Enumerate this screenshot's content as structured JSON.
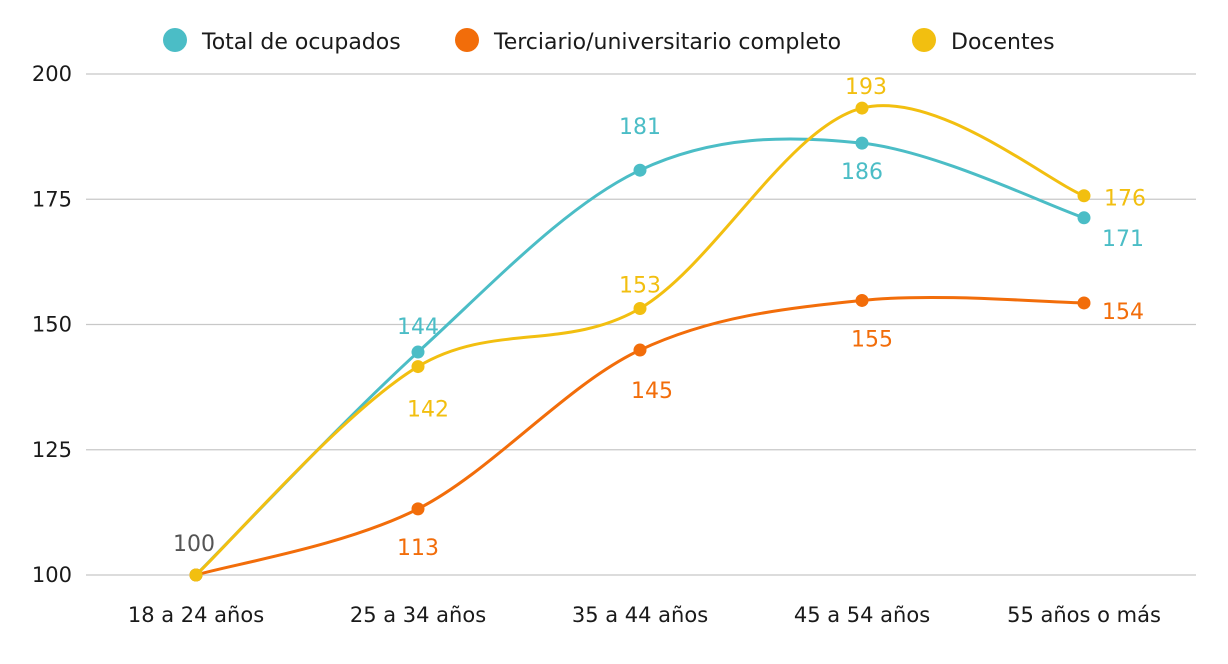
{
  "chart_data": {
    "type": "line",
    "title": "",
    "xlabel": "",
    "ylabel": "",
    "categories": [
      "18 a 24 años",
      "25 a 34 años",
      "35 a 44 años",
      "45 a 54 años",
      "55 años o más"
    ],
    "ylim": [
      100,
      200
    ],
    "yticks": [
      100,
      125,
      150,
      175,
      200
    ],
    "grid": true,
    "legend_position": "top",
    "series": [
      {
        "name": "Total de ocupados",
        "color": "#4bbdc6",
        "values": [
          100,
          144.5,
          180.8,
          186.2,
          171.3
        ],
        "labels": [
          "100",
          "144",
          "181",
          "186",
          "171"
        ]
      },
      {
        "name": "Terciario/universitario completo",
        "color": "#f26d0a",
        "values": [
          100,
          113.2,
          144.9,
          154.8,
          154.3
        ],
        "labels": [
          "",
          "113",
          "145",
          "155",
          "154"
        ]
      },
      {
        "name": "Docentes",
        "color": "#f2bf10",
        "values": [
          100,
          141.6,
          153.2,
          193.2,
          175.7
        ],
        "labels": [
          "",
          "142",
          "153",
          "193",
          "176"
        ]
      }
    ],
    "first_label_color": "#555555"
  }
}
